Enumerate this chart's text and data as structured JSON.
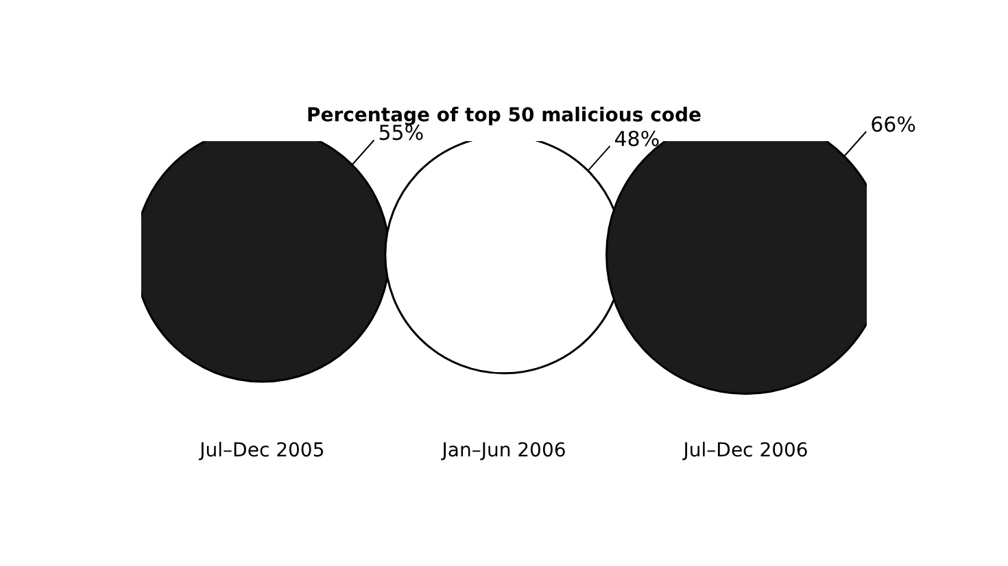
{
  "chart_data": {
    "type": "other",
    "title": "Percentage of top 50 malicious code",
    "categories": [
      "Jul–Dec 2005",
      "Jan–Jun 2006",
      "Jul–Dec 2006"
    ],
    "values": [
      55,
      48,
      66
    ],
    "value_labels": [
      "55%",
      "48%",
      "66%"
    ],
    "colors": [
      "#1c1c1c",
      "#ffffff",
      "#1c1c1c"
    ]
  }
}
